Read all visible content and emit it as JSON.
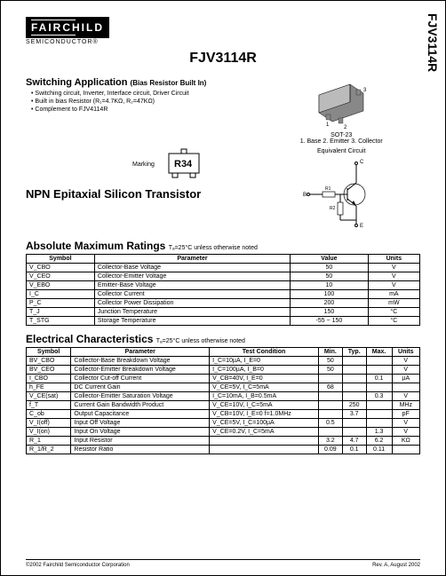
{
  "sideLabel": "FJV3114R",
  "logo": {
    "name": "FAIRCHILD",
    "sub": "SEMICONDUCTOR®"
  },
  "partNumber": "FJV3114R",
  "application": {
    "heading": "Switching Application",
    "subHeading": "(Bias Resistor Built In)",
    "bullets": [
      "Switching circuit, Inverter, Interface circuit, Driver Circuit",
      "Built in bias Resistor (R₁=4.7KΩ, R₂=47KΩ)",
      "Complement to FJV4114R"
    ]
  },
  "package": {
    "name": "SOT-23",
    "pins": "1. Base  2. Emitter  3. Collector"
  },
  "marking": {
    "label": "Marking",
    "code": "R34"
  },
  "equivLabel": "Equivalent Circuit",
  "deviceType": "NPN Epitaxial Silicon Transistor",
  "amr": {
    "title": "Absolute Maximum Ratings",
    "note": "Tₐ=25°C unless otherwise noted",
    "headers": [
      "Symbol",
      "Parameter",
      "Value",
      "Units"
    ],
    "rows": [
      [
        "V_CBO",
        "Collector-Base Voltage",
        "50",
        "V"
      ],
      [
        "V_CEO",
        "Collector-Emitter Voltage",
        "50",
        "V"
      ],
      [
        "V_EBO",
        "Emitter-Base Voltage",
        "10",
        "V"
      ],
      [
        "I_C",
        "Collector Current",
        "100",
        "mA"
      ],
      [
        "P_C",
        "Collector Power Dissipation",
        "200",
        "mW"
      ],
      [
        "T_J",
        "Junction Temperature",
        "150",
        "°C"
      ],
      [
        "T_STG",
        "Storage Temperature",
        "-55 ~ 150",
        "°C"
      ]
    ]
  },
  "ec": {
    "title": "Electrical Characteristics",
    "note": "Tₐ=25°C unless otherwise noted",
    "headers": [
      "Symbol",
      "Parameter",
      "Test Condition",
      "Min.",
      "Typ.",
      "Max.",
      "Units"
    ],
    "rows": [
      [
        "BV_CBO",
        "Collector-Base Breakdown Voltage",
        "I_C=10µA, I_E=0",
        "50",
        "",
        "",
        "V"
      ],
      [
        "BV_CEO",
        "Collector-Emitter Breakdown Voltage",
        "I_C=100µA, I_B=0",
        "50",
        "",
        "",
        "V"
      ],
      [
        "I_CBO",
        "Collector Cut-off Current",
        "V_CB=40V, I_E=0",
        "",
        "",
        "0.1",
        "µA"
      ],
      [
        "h_FE",
        "DC Current Gain",
        "V_CE=5V, I_C=5mA",
        "68",
        "",
        "",
        ""
      ],
      [
        "V_CE(sat)",
        "Collector-Emitter Saturation Voltage",
        "I_C=10mA, I_B=0.5mA",
        "",
        "",
        "0.3",
        "V"
      ],
      [
        "f_T",
        "Current Gain Bandwidth Product",
        "V_CE=10V, I_C=5mA",
        "",
        "250",
        "",
        "MHz"
      ],
      [
        "C_ob",
        "Output Capacitance",
        "V_CB=10V, I_E=0\nf=1.0MHz",
        "",
        "3.7",
        "",
        "pF"
      ],
      [
        "V_I(off)",
        "Input Off Voltage",
        "V_CE=5V, I_C=100µA",
        "0.5",
        "",
        "",
        "V"
      ],
      [
        "V_I(on)",
        "Input On Voltage",
        "V_CE=0.2V, I_C=5mA",
        "",
        "",
        "1.3",
        "V"
      ],
      [
        "R_1",
        "Input Resistor",
        "",
        "3.2",
        "4.7",
        "6.2",
        "KΩ"
      ],
      [
        "R_1/R_2",
        "Resistor Ratio",
        "",
        "0.09",
        "0.1",
        "0.11",
        ""
      ]
    ]
  },
  "footer": {
    "left": "©2002 Fairchild Semiconductor Corporation",
    "right": "Rev. A, August 2002"
  }
}
